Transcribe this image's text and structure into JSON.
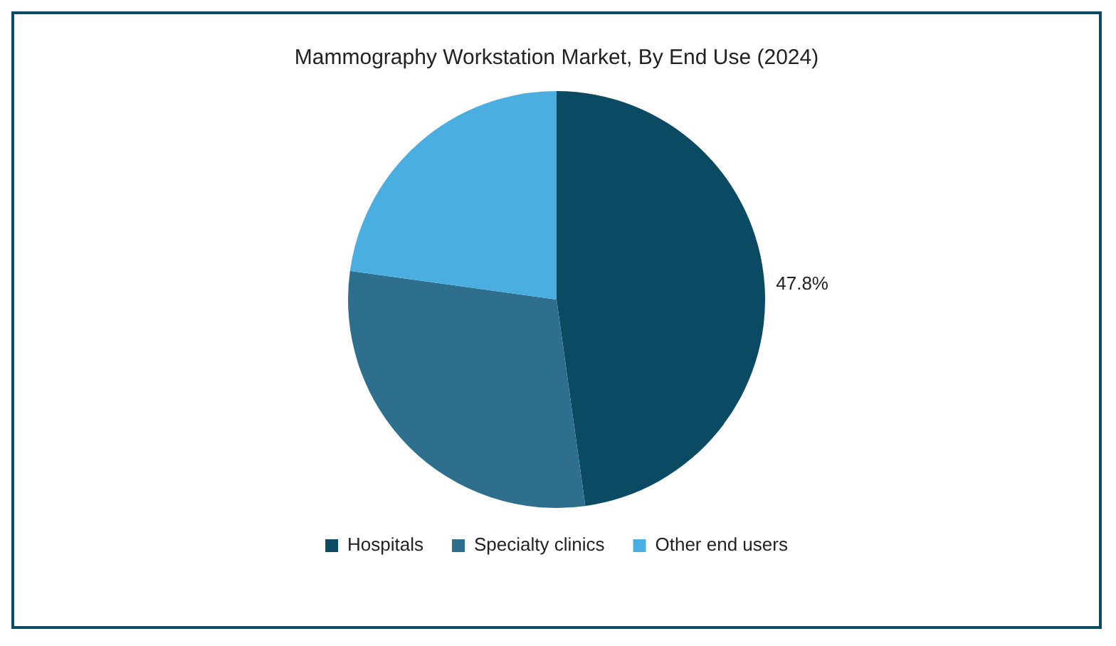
{
  "chart_data": {
    "type": "pie",
    "title": "Mammography Workstation Market, By End Use (2024)",
    "categories": [
      "Hospitals",
      "Specialty clinics",
      "Other end users"
    ],
    "values": [
      47.8,
      29.4,
      22.8
    ],
    "colors": [
      "#0b4a63",
      "#2e6f8e",
      "#4aaee0"
    ],
    "value_labels": [
      "47.8%",
      null,
      null
    ],
    "legend": "bottom"
  }
}
